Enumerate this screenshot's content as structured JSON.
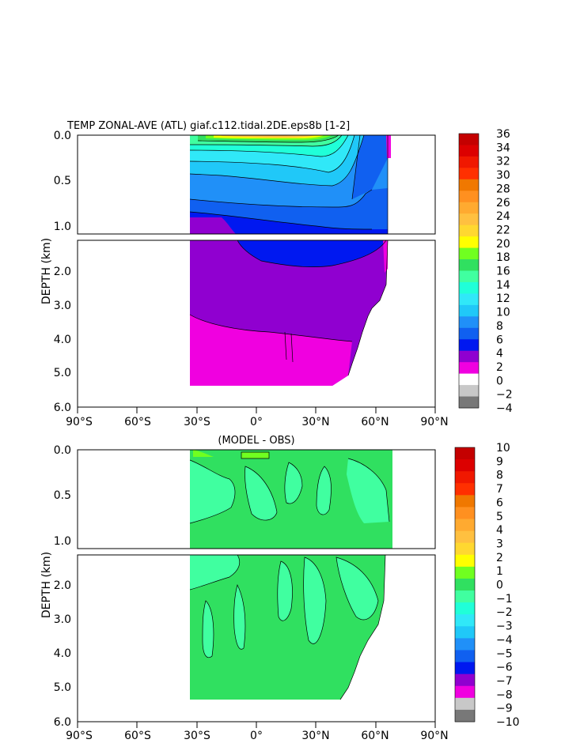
{
  "chart_data": [
    {
      "type": "contour",
      "title": "TEMP ZONAL-AVE (ATL) giaf.c112.tidal.2DE.eps8b [1-2]",
      "ylabel": "DEPTH (km)",
      "xlabel": "",
      "x_ticks": [
        "90°S",
        "60°S",
        "30°S",
        "0°",
        "30°N",
        "60°N",
        "90°N"
      ],
      "y_ticks": [
        "0.0",
        "0.5",
        "1.0",
        "2.0",
        "3.0",
        "4.0",
        "5.0",
        "6.0"
      ],
      "xlim": [
        -90,
        90
      ],
      "ylim_upper_panel_km": [
        0,
        1.2
      ],
      "ylim_lower_panel_km": [
        1.2,
        6
      ],
      "data_extent_lat": [
        -34,
        68
      ],
      "colorbar_levels": [
        "36",
        "34",
        "32",
        "30",
        "28",
        "26",
        "24",
        "22",
        "20",
        "18",
        "16",
        "14",
        "12",
        "10",
        "8",
        "6",
        "4",
        "2",
        "0",
        "−2",
        "−4"
      ],
      "colorbar_colors": [
        "#c40000",
        "#dc0000",
        "#f01800",
        "#ff3000",
        "#f07800",
        "#ff9020",
        "#ffaa30",
        "#ffc040",
        "#ffd830",
        "#ffff00",
        "#70ff20",
        "#30e060",
        "#40ffa0",
        "#20ffd8",
        "#30e8f8",
        "#20c8f8",
        "#2090f8",
        "#1060f0",
        "#0018f0",
        "#9000d0",
        "#f000e0",
        "#ffffff",
        "#c8c8c8",
        "#787878"
      ]
    },
    {
      "type": "contour",
      "title": "(MODEL - OBS)",
      "ylabel": "DEPTH (km)",
      "xlabel": "",
      "x_ticks": [
        "90°S",
        "60°S",
        "30°S",
        "0°",
        "30°N",
        "60°N",
        "90°N"
      ],
      "y_ticks": [
        "0.0",
        "0.5",
        "1.0",
        "2.0",
        "3.0",
        "4.0",
        "5.0",
        "6.0"
      ],
      "xlim": [
        -90,
        90
      ],
      "ylim_upper_panel_km": [
        0,
        1.2
      ],
      "ylim_lower_panel_km": [
        1.2,
        6
      ],
      "data_extent_lat": [
        -34,
        68
      ],
      "colorbar_levels": [
        "10",
        "9",
        "8",
        "7",
        "6",
        "5",
        "4",
        "3",
        "2",
        "1",
        "0",
        "−1",
        "−2",
        "−3",
        "−4",
        "−5",
        "−6",
        "−7",
        "−8",
        "−9",
        "−10"
      ],
      "colorbar_colors": [
        "#c40000",
        "#dc0000",
        "#f01800",
        "#ff3000",
        "#f07800",
        "#ff9020",
        "#ffaa30",
        "#ffc040",
        "#ffd830",
        "#ffff00",
        "#70ff20",
        "#30e060",
        "#40ffa0",
        "#20ffd8",
        "#30e8f8",
        "#20c8f8",
        "#2090f8",
        "#1060f0",
        "#0018f0",
        "#9000d0",
        "#f000e0",
        "#c8c8c8",
        "#787878"
      ]
    }
  ]
}
